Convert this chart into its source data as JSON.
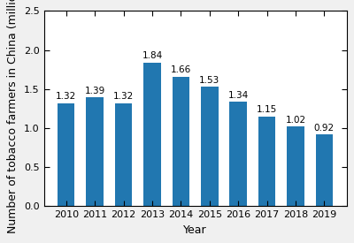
{
  "years": [
    "2010",
    "2011",
    "2012",
    "2013",
    "2014",
    "2015",
    "2016",
    "2017",
    "2018",
    "2019"
  ],
  "values": [
    1.32,
    1.39,
    1.32,
    1.84,
    1.66,
    1.53,
    1.34,
    1.15,
    1.02,
    0.92
  ],
  "bar_color": "#2177b0",
  "xlabel": "Year",
  "ylabel": "Number of tobacco farmers in China (million)",
  "ylim": [
    0,
    2.5
  ],
  "yticks": [
    0.0,
    0.5,
    1.0,
    1.5,
    2.0,
    2.5
  ],
  "label_fontsize": 9,
  "tick_fontsize": 8,
  "bar_label_fontsize": 7.5,
  "background_color": "#f0f0f0",
  "plot_bg_color": "#ffffff"
}
